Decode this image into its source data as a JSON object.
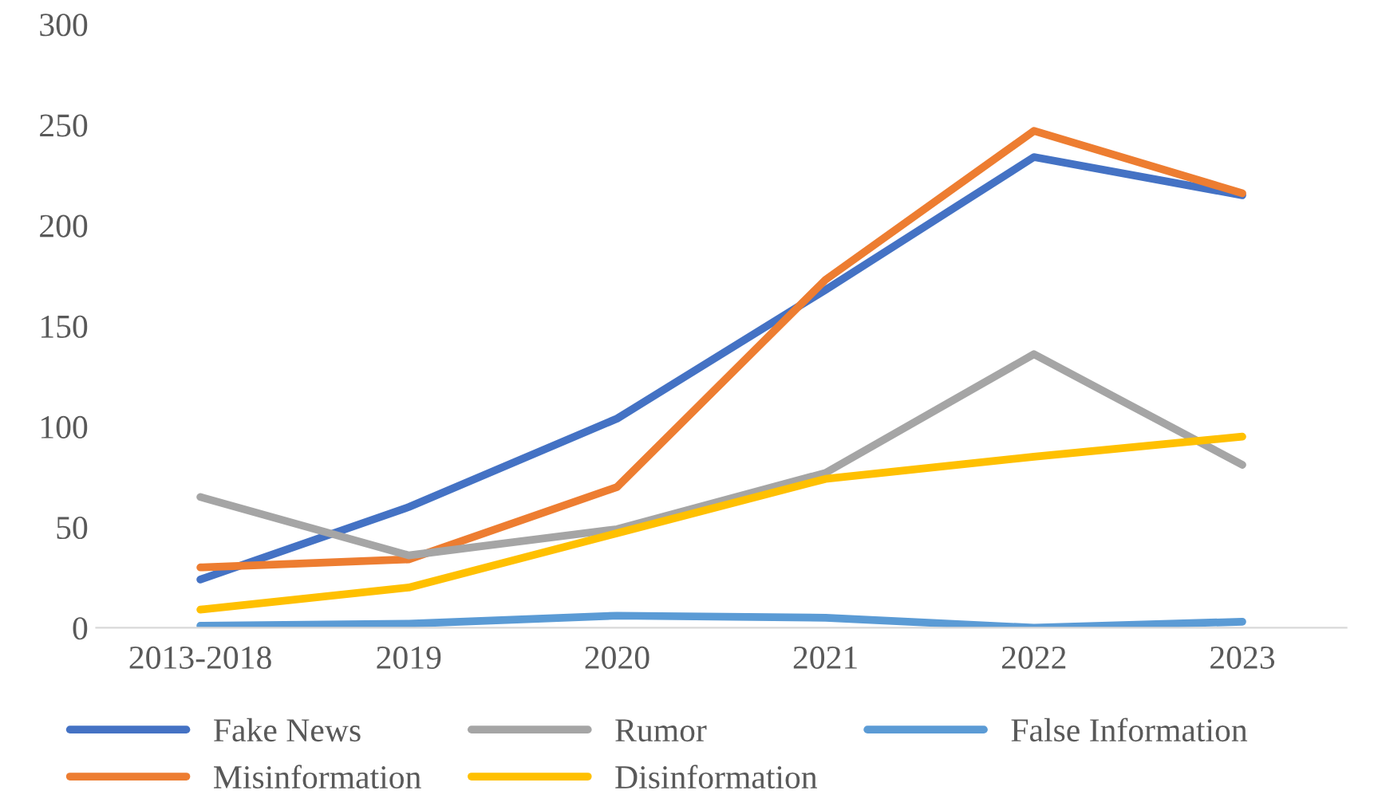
{
  "chart_data": {
    "type": "line",
    "categories": [
      "2013-2018",
      "2019",
      "2020",
      "2021",
      "2022",
      "2023"
    ],
    "series": [
      {
        "name": "Fake News",
        "color": "#4472c4",
        "values": [
          24,
          60,
          104,
          168,
          234,
          215
        ]
      },
      {
        "name": "Misinformation",
        "color": "#ed7d31",
        "values": [
          30,
          34,
          70,
          173,
          247,
          216
        ]
      },
      {
        "name": "Rumor",
        "color": "#a5a5a5",
        "values": [
          65,
          36,
          49,
          77,
          136,
          81
        ]
      },
      {
        "name": "Disinformation",
        "color": "#ffc000",
        "values": [
          9,
          20,
          47,
          74,
          85,
          95
        ]
      },
      {
        "name": "False Information",
        "color": "#5b9bd5",
        "values": [
          1,
          2,
          6,
          5,
          0,
          3
        ]
      }
    ],
    "ylim": [
      0,
      300
    ],
    "yticks": [
      0,
      50,
      100,
      150,
      200,
      250,
      300
    ],
    "grid": false,
    "legend": "bottom",
    "marker": "none",
    "line_style": "solid"
  }
}
